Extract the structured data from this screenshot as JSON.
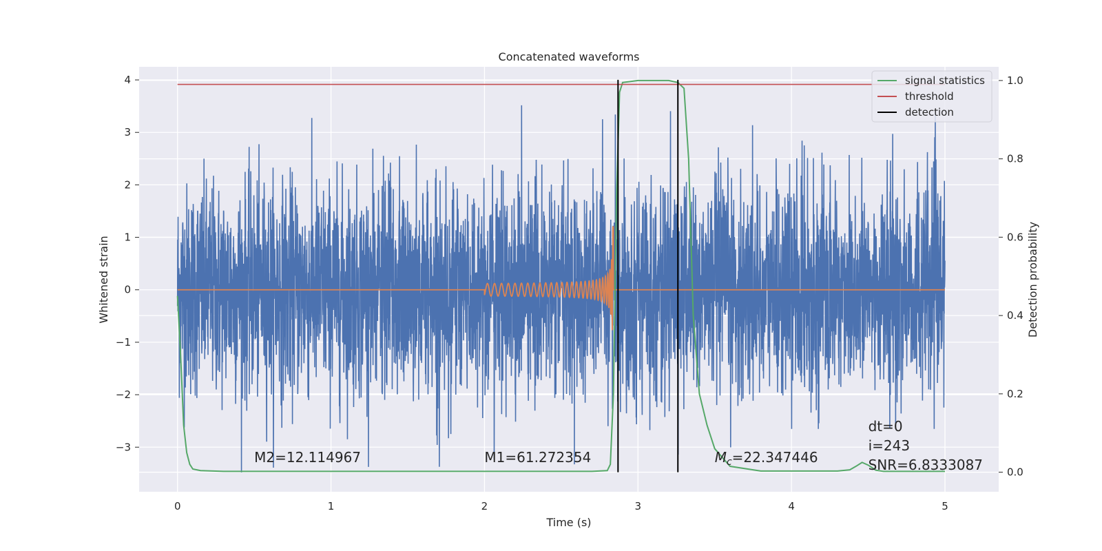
{
  "chart_data": {
    "type": "line",
    "title": "Concatenated waveforms",
    "xlabel": "Time (s)",
    "ylabel": "Whitened strain",
    "y2label": "Detection probability",
    "xlim": [
      -0.25,
      5.35
    ],
    "ylim": [
      -3.85,
      4.25
    ],
    "y2lim": [
      -0.05,
      1.035
    ],
    "grid": true,
    "xticks": [
      0,
      1,
      2,
      3,
      4,
      5
    ],
    "xtick_labels": [
      "0",
      "1",
      "2",
      "3",
      "4",
      "5"
    ],
    "yticks": [
      -3,
      -2,
      -1,
      0,
      1,
      2,
      3,
      4
    ],
    "ytick_labels": [
      "−3",
      "−2",
      "−1",
      "0",
      "1",
      "2",
      "3",
      "4"
    ],
    "y2ticks": [
      0.0,
      0.2,
      0.4,
      0.6,
      0.8,
      1.0
    ],
    "y2tick_labels": [
      "0.0",
      "0.2",
      "0.4",
      "0.6",
      "0.8",
      "1.0"
    ],
    "legend": {
      "placement": "top-right",
      "entries": [
        {
          "label": "signal statistics",
          "color": "#55a868"
        },
        {
          "label": "threshold",
          "color": "#c44e52"
        },
        {
          "label": "detection",
          "color": "#000000"
        }
      ]
    },
    "series": [
      {
        "name": "whitened strain",
        "color": "#4c72b0",
        "axis": "left",
        "kind": "noise",
        "x_start": 0,
        "x_end": 5,
        "typical_amplitude": 1.0,
        "range": [
          -3.5,
          3.6
        ]
      },
      {
        "name": "template",
        "color": "#dd8452",
        "axis": "left",
        "kind": "chirp",
        "x_start": 2.0,
        "x_end": 2.84,
        "peak_amplitude": 1.2,
        "baseline_range": [
          0,
          5
        ]
      },
      {
        "name": "signal statistics",
        "color": "#55a868",
        "axis": "right",
        "x": [
          0,
          0.02,
          0.04,
          0.06,
          0.08,
          0.1,
          0.15,
          0.3,
          1,
          2,
          2.7,
          2.8,
          2.82,
          2.84,
          2.86,
          2.88,
          2.9,
          3,
          3.2,
          3.26,
          3.3,
          3.33,
          3.36,
          3.4,
          3.45,
          3.5,
          3.6,
          3.8,
          4.3,
          4.38,
          4.42,
          4.46,
          4.5,
          4.55,
          4.6,
          4.7,
          5
        ],
        "y": [
          0.45,
          0.3,
          0.12,
          0.05,
          0.02,
          0.008,
          0.004,
          0.002,
          0.002,
          0.002,
          0.002,
          0.004,
          0.02,
          0.2,
          0.7,
          0.97,
          0.995,
          1.0,
          1.0,
          0.995,
          0.98,
          0.8,
          0.4,
          0.2,
          0.12,
          0.06,
          0.015,
          0.003,
          0.003,
          0.006,
          0.015,
          0.025,
          0.018,
          0.005,
          0.002,
          0.002,
          0.002
        ]
      },
      {
        "name": "threshold",
        "color": "#c44e52",
        "axis": "right",
        "x": [
          0,
          5
        ],
        "y": [
          0.99,
          0.99
        ]
      }
    ],
    "detections": [
      {
        "x": 2.87,
        "color": "#000000"
      },
      {
        "x": 3.26,
        "color": "#000000"
      }
    ],
    "annotations": [
      {
        "text": "M2=12.114967",
        "x": 0.5
      },
      {
        "text": "M1=61.272354",
        "x": 2.0
      },
      {
        "text_main": "M",
        "text_sub": "c",
        "text_rest": "=22.347446",
        "x": 3.5
      },
      {
        "lines": [
          "dt=0",
          "i=243",
          "SNR=6.8333087"
        ],
        "x": 4.5
      }
    ]
  }
}
